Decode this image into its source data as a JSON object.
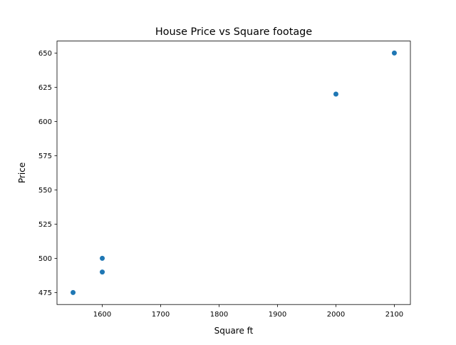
{
  "chart_data": {
    "type": "scatter",
    "title": "House Price vs Square footage",
    "xlabel": "Square ft",
    "ylabel": "Price",
    "x": [
      1550,
      1600,
      1600,
      2000,
      2100
    ],
    "y": [
      475,
      490,
      500,
      620,
      650
    ],
    "xlim": [
      1522.5,
      2127.5
    ],
    "ylim": [
      466.25,
      658.75
    ],
    "xticks": [
      1600,
      1700,
      1800,
      1900,
      2000,
      2100
    ],
    "yticks": [
      475,
      500,
      525,
      550,
      575,
      600,
      625,
      650
    ],
    "grid": false,
    "color": "#1f77b4"
  }
}
